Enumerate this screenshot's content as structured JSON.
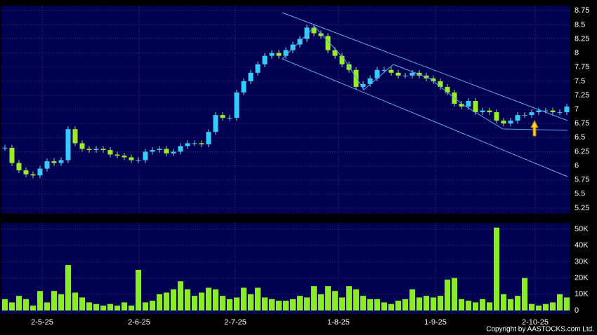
{
  "chart_data": [
    {
      "type": "candlestick",
      "xlim": [
        -0.5,
        80.5
      ],
      "ylim": [
        5.15,
        8.84
      ],
      "yticks": [
        5.25,
        5.5,
        5.75,
        6,
        6.25,
        6.5,
        6.75,
        7,
        7.25,
        7.5,
        7.75,
        8,
        8.25,
        8.5,
        8.75
      ],
      "grid": true,
      "up_color": "#33ccff",
      "down_color": "#99ee22",
      "open": [
        6.32,
        6.32,
        6.05,
        5.92,
        5.85,
        5.83,
        5.95,
        6.08,
        6.05,
        6.1,
        6.65,
        6.4,
        6.3,
        6.28,
        6.3,
        6.28,
        6.2,
        6.18,
        6.15,
        6.1,
        6.1,
        6.25,
        6.28,
        6.3,
        6.22,
        6.25,
        6.35,
        6.4,
        6.4,
        6.38,
        6.6,
        6.9,
        6.85,
        6.85,
        7.3,
        7.5,
        7.65,
        7.8,
        7.95,
        8.0,
        7.95,
        8.05,
        8.15,
        8.25,
        8.45,
        8.35,
        8.3,
        8.05,
        7.95,
        7.8,
        7.7,
        7.4,
        7.45,
        7.55,
        7.7,
        7.7,
        7.65,
        7.6,
        7.6,
        7.65,
        7.6,
        7.55,
        7.5,
        7.4,
        7.3,
        7.1,
        7.05,
        7.15,
        6.95,
        6.98,
        6.95,
        6.8,
        6.75,
        6.8,
        6.9,
        6.9,
        6.95,
        6.98,
        6.98,
        6.95,
        6.95
      ],
      "high": [
        6.37,
        6.37,
        6.1,
        5.97,
        5.9,
        6.0,
        6.13,
        6.13,
        6.15,
        6.7,
        6.7,
        6.45,
        6.35,
        6.35,
        6.35,
        6.33,
        6.25,
        6.23,
        6.2,
        6.15,
        6.3,
        6.33,
        6.35,
        6.35,
        6.3,
        6.4,
        6.45,
        6.45,
        6.45,
        6.65,
        6.95,
        6.95,
        6.9,
        7.35,
        7.55,
        7.7,
        7.85,
        8.0,
        8.05,
        8.05,
        8.1,
        8.2,
        8.3,
        8.5,
        8.5,
        8.4,
        8.35,
        8.1,
        8.0,
        7.85,
        7.75,
        7.5,
        7.6,
        7.75,
        7.75,
        7.75,
        7.7,
        7.65,
        7.7,
        7.7,
        7.65,
        7.6,
        7.55,
        7.45,
        7.35,
        7.15,
        7.2,
        7.2,
        7.03,
        7.03,
        7.0,
        6.85,
        6.85,
        6.95,
        6.95,
        7.0,
        7.03,
        7.03,
        7.03,
        7.0,
        7.1
      ],
      "low": [
        6.27,
        6.0,
        5.87,
        5.8,
        5.78,
        5.78,
        5.9,
        6.0,
        6.0,
        6.05,
        6.35,
        6.25,
        6.23,
        6.23,
        6.23,
        6.15,
        6.13,
        6.1,
        6.05,
        6.05,
        6.05,
        6.2,
        6.23,
        6.17,
        6.17,
        6.2,
        6.3,
        6.35,
        6.33,
        6.33,
        6.55,
        6.8,
        6.8,
        6.8,
        7.25,
        7.45,
        7.6,
        7.75,
        7.9,
        7.9,
        7.9,
        8.0,
        8.1,
        8.2,
        8.3,
        8.25,
        8.0,
        7.9,
        7.75,
        7.65,
        7.35,
        7.35,
        7.4,
        7.5,
        7.65,
        7.6,
        7.55,
        7.55,
        7.55,
        7.55,
        7.5,
        7.45,
        7.35,
        7.25,
        7.05,
        7.0,
        7.0,
        6.9,
        6.9,
        6.9,
        6.75,
        6.7,
        6.7,
        6.75,
        6.85,
        6.85,
        6.9,
        6.93,
        6.9,
        6.9,
        6.9
      ],
      "close": [
        6.32,
        6.05,
        5.92,
        5.85,
        5.83,
        5.95,
        6.08,
        6.05,
        6.1,
        6.65,
        6.4,
        6.3,
        6.28,
        6.3,
        6.28,
        6.2,
        6.18,
        6.15,
        6.1,
        6.1,
        6.25,
        6.28,
        6.3,
        6.22,
        6.25,
        6.35,
        6.4,
        6.4,
        6.38,
        6.6,
        6.9,
        6.85,
        6.85,
        7.3,
        7.5,
        7.65,
        7.8,
        7.95,
        8.0,
        7.95,
        8.05,
        8.15,
        8.25,
        8.45,
        8.35,
        8.3,
        8.05,
        7.95,
        7.8,
        7.7,
        7.4,
        7.45,
        7.55,
        7.7,
        7.7,
        7.65,
        7.6,
        7.6,
        7.65,
        7.6,
        7.55,
        7.5,
        7.4,
        7.3,
        7.1,
        7.05,
        7.15,
        6.95,
        6.98,
        6.95,
        6.8,
        6.75,
        6.8,
        6.9,
        6.9,
        6.95,
        6.98,
        6.98,
        6.95,
        6.95,
        7.05
      ]
    },
    {
      "type": "bar",
      "xlim": [
        -0.5,
        80.5
      ],
      "ylim": [
        -2150,
        53900
      ],
      "yticks": [
        {
          "value": 0,
          "label": "0"
        },
        {
          "value": 10000,
          "label": "10K"
        },
        {
          "value": 20000,
          "label": "20K"
        },
        {
          "value": 30000,
          "label": "30K"
        },
        {
          "value": 40000,
          "label": "40K"
        },
        {
          "value": 50000,
          "label": "50K"
        }
      ],
      "xticks": [
        {
          "value": 5.3,
          "label": "2-5-25"
        },
        {
          "value": 19.1,
          "label": "2-6-25"
        },
        {
          "value": 32.8,
          "label": "2-7-25"
        },
        {
          "value": 47.5,
          "label": "1-8-25"
        },
        {
          "value": 61.3,
          "label": "1-9-25"
        },
        {
          "value": 75.5,
          "label": "2-10-25"
        }
      ],
      "grid": true,
      "color": "#88ee22",
      "values": [
        7000,
        5000,
        9000,
        7000,
        3000,
        12000,
        5000,
        12000,
        10000,
        28000,
        11000,
        8000,
        5000,
        4000,
        3000,
        4000,
        3000,
        5000,
        3000,
        25000,
        5000,
        6000,
        10000,
        11000,
        13000,
        18000,
        13000,
        9000,
        11000,
        14000,
        13000,
        9000,
        7000,
        8000,
        14000,
        10000,
        14000,
        8000,
        7000,
        6000,
        6000,
        7000,
        9000,
        8000,
        15000,
        10000,
        15000,
        12000,
        8000,
        15000,
        13000,
        9000,
        7000,
        7000,
        5000,
        4000,
        6000,
        7000,
        13000,
        8000,
        9000,
        8000,
        9000,
        19000,
        20000,
        7000,
        6000,
        5000,
        7000,
        5000,
        51000,
        10000,
        7000,
        9000,
        20000,
        4000,
        3000,
        4000,
        5000,
        10000,
        8000
      ]
    }
  ],
  "copyright": "Copyright by AASTOCKS.com Ltd."
}
